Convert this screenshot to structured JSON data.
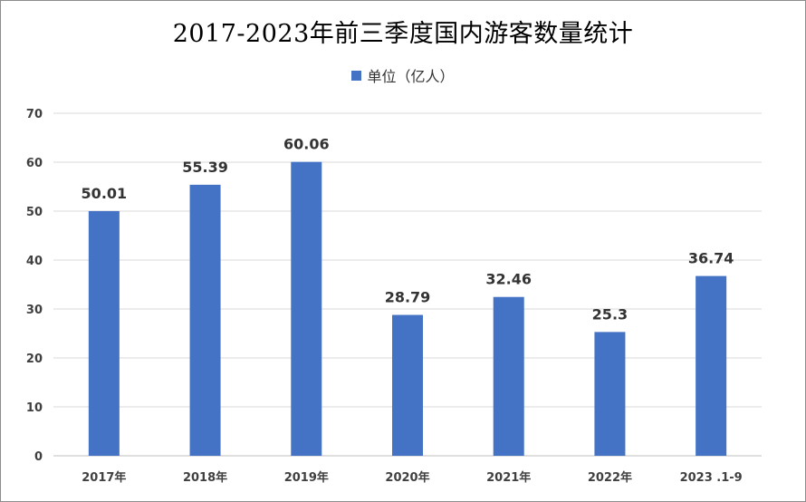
{
  "chart_data": {
    "type": "bar",
    "title": "2017-2023年前三季度国内游客数量统计",
    "categories": [
      "2017年",
      "2018年",
      "2019年",
      "2020年",
      "2021年",
      "2022年",
      "2023 .1-9"
    ],
    "series": [
      {
        "name": "单位（亿人）",
        "values": [
          50.01,
          55.39,
          60.06,
          28.79,
          32.46,
          25.3,
          36.74
        ],
        "labels": [
          "50.01",
          "55.39",
          "60.06",
          "28.79",
          "32.46",
          "25.3",
          "36.74"
        ],
        "color": "#4472C4"
      }
    ],
    "yticks": [
      "0",
      "10",
      "20",
      "30",
      "40",
      "50",
      "60",
      "70"
    ],
    "ylim": [
      0,
      70
    ],
    "grid": true,
    "legend_position": "top"
  }
}
